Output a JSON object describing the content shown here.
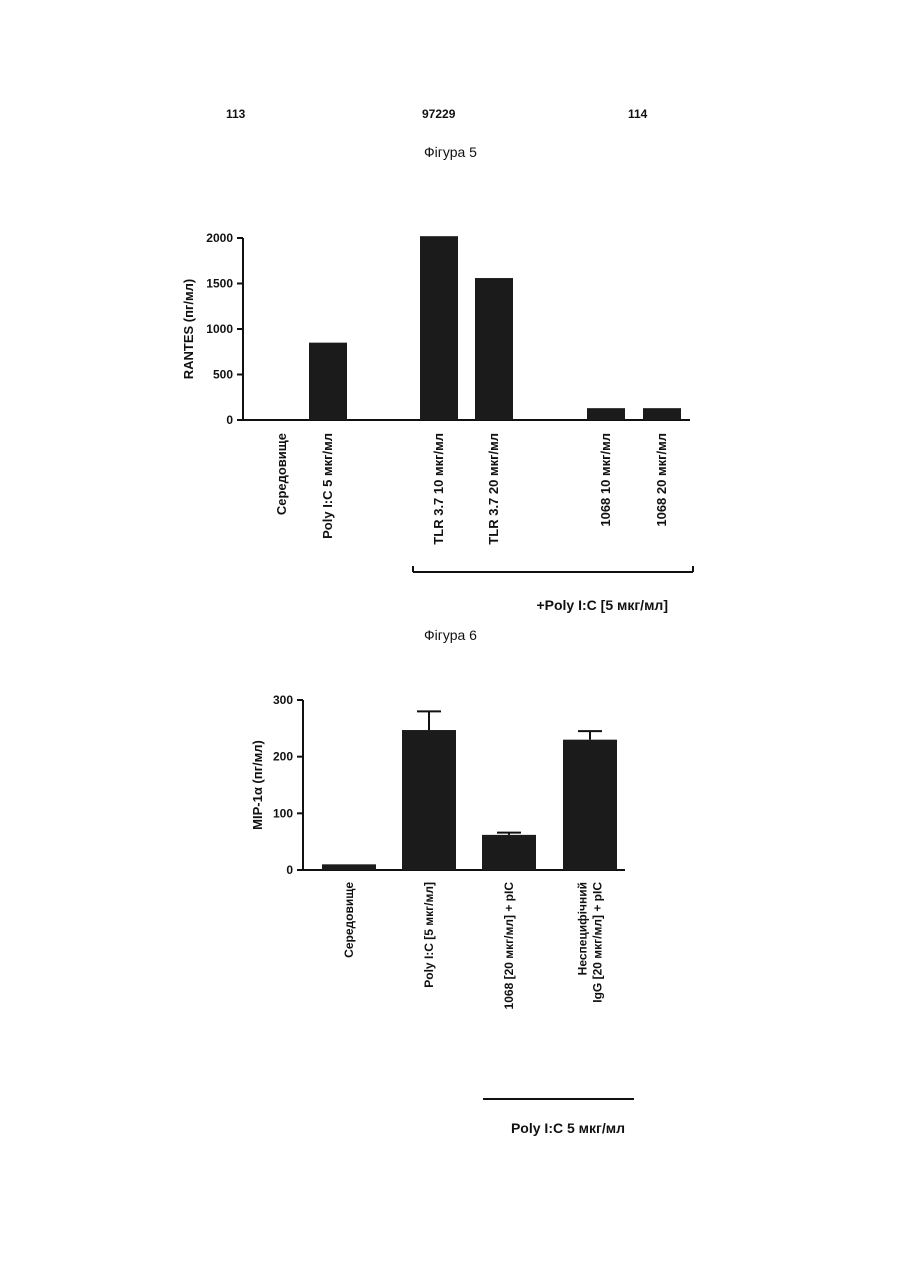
{
  "header": {
    "left": "113",
    "center": "97229",
    "right": "114"
  },
  "figures": [
    {
      "label": "Фігура 5"
    },
    {
      "label": "Фігура 6"
    }
  ],
  "chart_data": [
    {
      "type": "bar",
      "ylabel": "RANTES (пг/мл)",
      "ylim": [
        0,
        2000
      ],
      "yticks": [
        0,
        500,
        1000,
        1500,
        2000
      ],
      "categories": [
        "Середовище",
        "Poly I:C 5 мкг/мл",
        "TLR 3.7 10 мкг/мл",
        "TLR 3.7 20 мкг/мл",
        "1068 10 мкг/мл",
        "1068 20 мкг/мл"
      ],
      "values": [
        0,
        850,
        2020,
        1560,
        130,
        130
      ],
      "group_label": "+Poly I:C [5 мкг/мл]",
      "grid": false
    },
    {
      "type": "bar",
      "ylabel": "MIP-1α (пг/мл)",
      "ylim": [
        0,
        300
      ],
      "yticks": [
        0,
        100,
        200,
        300
      ],
      "categories": [
        "Середовище",
        "Poly I:C [5 мкг/мл]",
        "1068 [20 мкг/мл] + pIC",
        "Неспецифічний IgG [20 мкг/мл] + pIC"
      ],
      "values": [
        10,
        247,
        62,
        230
      ],
      "errors": [
        0,
        33,
        4,
        15
      ],
      "group_label": "Poly I:C 5 мкг/мл",
      "grid": false
    }
  ]
}
